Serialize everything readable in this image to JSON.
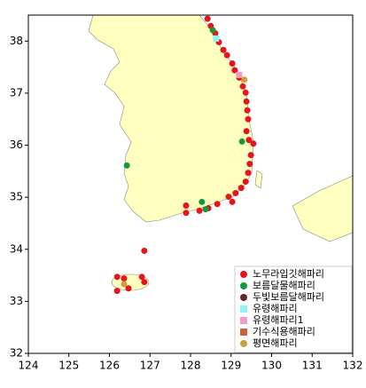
{
  "chart_data": {
    "type": "scatter",
    "xlim": [
      124,
      132
    ],
    "ylim": [
      32,
      38.5
    ],
    "xticks": [
      124,
      125,
      126,
      127,
      128,
      129,
      130,
      131,
      132
    ],
    "yticks": [
      32,
      33,
      34,
      35,
      36,
      37,
      38
    ],
    "legend": "lower right",
    "series": [
      {
        "name": "노무라입깃해파리",
        "color": "#e8141c",
        "marker": "circle",
        "x": [
          128.42,
          128.5,
          128.61,
          128.7,
          128.81,
          128.9,
          129.03,
          129.09,
          129.2,
          129.29,
          129.36,
          129.38,
          129.4,
          129.42,
          129.38,
          129.44,
          129.55,
          129.49,
          129.46,
          129.42,
          129.36,
          129.25,
          129.11,
          128.94,
          129.03,
          128.66,
          128.44,
          128.22,
          127.89,
          127.89,
          126.86,
          126.19,
          126.36,
          126.8,
          126.86,
          126.47,
          126.19
        ],
        "values": [
          38.43,
          38.29,
          38.15,
          37.98,
          37.83,
          37.73,
          37.57,
          37.44,
          37.3,
          37.13,
          37.01,
          36.84,
          36.67,
          36.5,
          36.27,
          36.1,
          36.03,
          35.81,
          35.64,
          35.47,
          35.3,
          35.18,
          35.08,
          35.01,
          34.91,
          34.87,
          34.79,
          34.74,
          34.84,
          34.7,
          33.97,
          33.47,
          33.44,
          33.47,
          33.37,
          33.25,
          33.2
        ]
      },
      {
        "name": "보름달물해파리",
        "color": "#139a3a",
        "marker": "circle",
        "x": [
          128.55,
          129.27,
          126.43,
          128.28,
          128.37
        ],
        "values": [
          38.21,
          36.07,
          35.61,
          34.91,
          34.77
        ]
      },
      {
        "name": "두빛보름달해파리",
        "color": "#5a2a2a",
        "marker": "circle",
        "x": [],
        "values": []
      },
      {
        "name": "유령해파리",
        "color": "#8ff3f3",
        "marker": "square",
        "x": [
          128.63
        ],
        "values": [
          38.05
        ]
      },
      {
        "name": "유령해파리1",
        "color": "#f29ac8",
        "marker": "square",
        "x": [
          129.2
        ],
        "values": [
          37.35
        ]
      },
      {
        "name": "기수식용해파리",
        "color": "#c8643c",
        "marker": "square",
        "x": [],
        "values": []
      },
      {
        "name": "평면해파리",
        "color": "#c8a040",
        "marker": "circle",
        "x": [
          129.33,
          126.36
        ],
        "values": [
          37.26,
          33.33
        ]
      }
    ]
  }
}
